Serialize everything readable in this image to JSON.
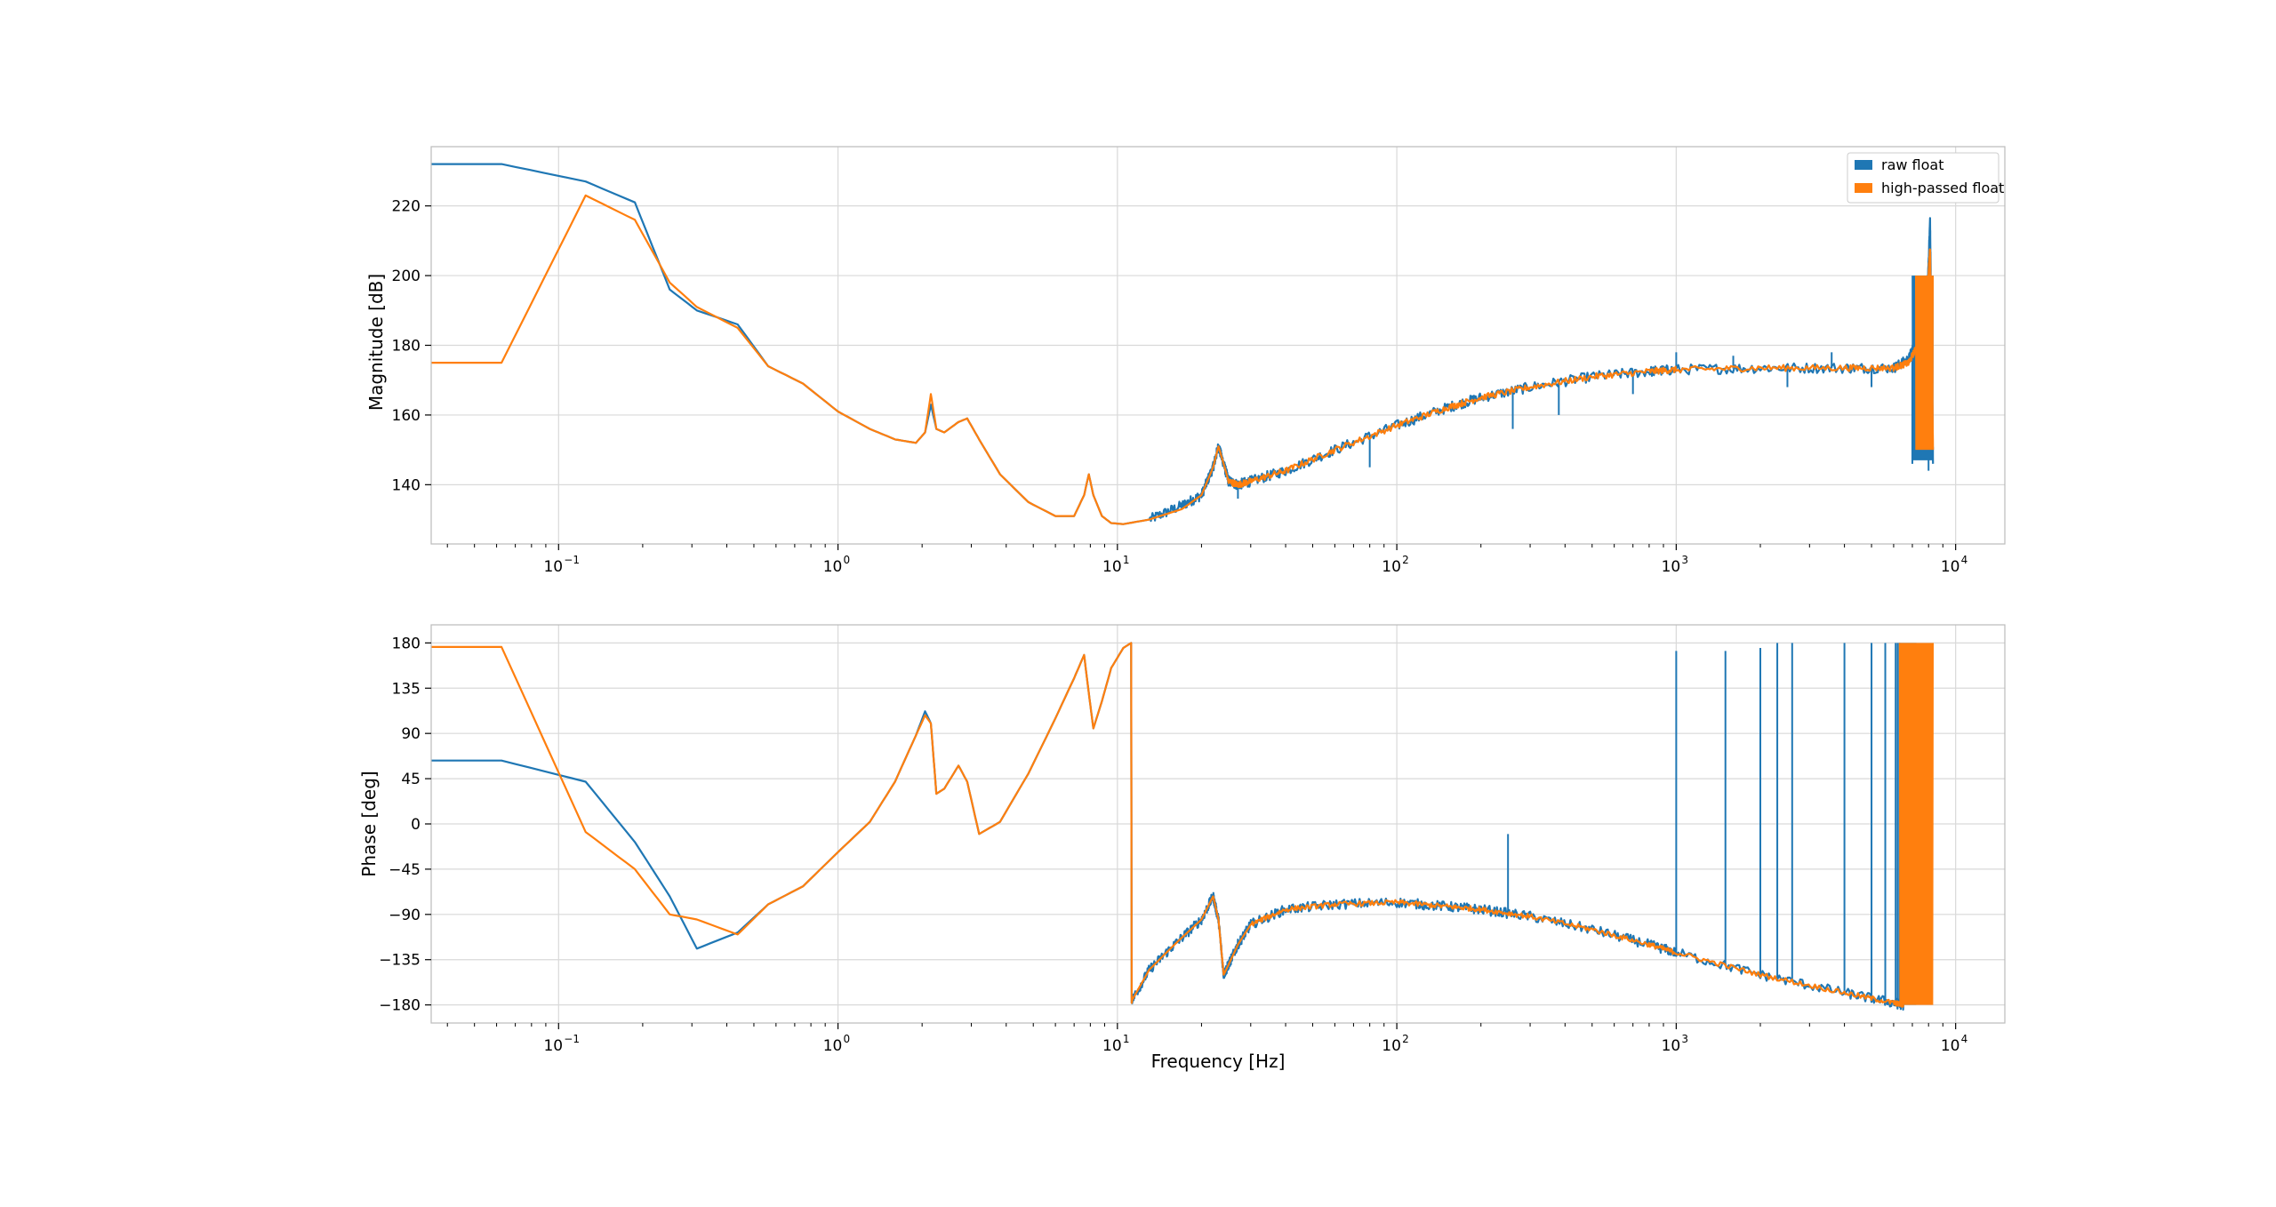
{
  "colors": {
    "raw": "#1f77b4",
    "high_passed": "#ff7f0e",
    "grid": "#d9d9d9",
    "frame": "#bbbbbb"
  },
  "chart_data": [
    {
      "type": "line",
      "title": "",
      "xlabel": "",
      "ylabel": "Magnitude [dB]",
      "xscale": "log",
      "xlim": [
        0.035,
        15000
      ],
      "ylim": [
        123,
        237
      ],
      "grid": true,
      "legend_position": "top-right",
      "x_ticks": [
        {
          "value": 0.1,
          "base": "10",
          "exp": "−1"
        },
        {
          "value": 1,
          "base": "10",
          "exp": "0"
        },
        {
          "value": 10,
          "base": "10",
          "exp": "1"
        },
        {
          "value": 100,
          "base": "10",
          "exp": "2"
        },
        {
          "value": 1000,
          "base": "10",
          "exp": "3"
        },
        {
          "value": 10000,
          "base": "10",
          "exp": "4"
        }
      ],
      "y_ticks": [
        {
          "value": 140,
          "label": "140"
        },
        {
          "value": 160,
          "label": "160"
        },
        {
          "value": 180,
          "label": "180"
        },
        {
          "value": 200,
          "label": "200"
        },
        {
          "value": 220,
          "label": "220"
        }
      ],
      "series": [
        {
          "name": "raw float",
          "color": "#1f77b4",
          "x": [
            0.035,
            0.0625,
            0.125,
            0.1875,
            0.25,
            0.3125,
            0.4375,
            0.5625,
            0.75,
            1.0,
            1.3,
            1.6,
            1.9,
            2.05,
            2.15,
            2.25,
            2.4,
            2.7,
            2.9,
            3.2,
            3.8,
            4.8,
            6.0,
            7.0,
            7.6,
            7.9,
            8.2,
            8.8,
            9.5,
            10.5,
            13,
            17,
            20,
            22,
            23,
            24,
            25,
            27,
            30,
            40,
            60,
            100,
            150,
            200,
            300,
            500,
            800,
            1000,
            2000,
            4000,
            6000,
            6800,
            7300,
            7800,
            8100,
            8300
          ],
          "y": [
            232,
            232,
            227,
            221,
            196,
            190,
            186,
            174,
            169,
            161,
            156,
            153,
            152,
            155,
            163,
            156,
            155,
            158,
            159,
            153,
            143,
            135,
            131,
            131,
            137,
            143,
            137,
            131,
            129,
            128.7,
            130,
            134,
            137,
            145,
            151,
            146,
            141,
            140,
            141,
            144,
            150,
            157,
            162,
            165,
            168,
            171,
            172.5,
            173,
            173.5,
            173.5,
            173.5,
            176,
            183,
            180,
            216,
            146
          ],
          "noise_from": 13,
          "noise_amp": 1.5,
          "spikes": [
            {
              "x": 27,
              "y": 136
            },
            {
              "x": 80,
              "y": 145
            },
            {
              "x": 260,
              "y": 156
            },
            {
              "x": 380,
              "y": 160
            },
            {
              "x": 700,
              "y": 166
            },
            {
              "x": 1000,
              "y": 178
            },
            {
              "x": 1600,
              "y": 177
            },
            {
              "x": 2500,
              "y": 168
            },
            {
              "x": 3600,
              "y": 178
            },
            {
              "x": 5000,
              "y": 168
            },
            {
              "x": 7000,
              "y": 146
            },
            {
              "x": 8000,
              "y": 144
            }
          ],
          "envelope_end": {
            "x_start": 7000,
            "x_end": 8300,
            "hi": 200,
            "lo": 147
          }
        },
        {
          "name": "high-passed float",
          "color": "#ff7f0e",
          "x": [
            0.035,
            0.0625,
            0.125,
            0.1875,
            0.25,
            0.3125,
            0.4375,
            0.5625,
            0.75,
            1.0,
            1.3,
            1.6,
            1.9,
            2.05,
            2.15,
            2.25,
            2.4,
            2.7,
            2.9,
            3.2,
            3.8,
            4.8,
            6.0,
            7.0,
            7.6,
            7.9,
            8.2,
            8.8,
            9.5,
            10.5,
            13,
            17,
            20,
            22,
            23,
            24,
            25,
            27,
            30,
            40,
            60,
            100,
            150,
            200,
            300,
            500,
            800,
            1000,
            2000,
            4000,
            6000,
            6800,
            7300,
            7800,
            8100,
            8300
          ],
          "y": [
            175,
            175,
            223,
            216,
            198,
            191,
            185,
            174,
            169,
            161,
            156,
            153,
            152,
            155,
            166,
            156,
            155,
            158,
            159,
            153,
            143,
            135,
            131,
            131,
            137,
            143,
            137,
            131,
            129,
            128.7,
            130,
            133,
            137,
            145,
            151,
            146,
            141,
            140,
            141,
            144,
            150,
            157,
            162,
            165,
            168,
            171,
            172.5,
            173,
            173.5,
            173.5,
            173.5,
            175,
            180,
            185,
            208,
            150
          ],
          "noise_from": 25,
          "noise_amp": 0.9,
          "spikes": [],
          "envelope_end": {
            "x_start": 7200,
            "x_end": 8300,
            "hi": 200,
            "lo": 150
          }
        }
      ],
      "legend": [
        "raw float",
        "high-passed float"
      ]
    },
    {
      "type": "line",
      "title": "",
      "xlabel": "Frequency [Hz]",
      "ylabel": "Phase [deg]",
      "xscale": "log",
      "xlim": [
        0.035,
        15000
      ],
      "ylim": [
        -198,
        198
      ],
      "grid": true,
      "x_ticks": [
        {
          "value": 0.1,
          "base": "10",
          "exp": "−1"
        },
        {
          "value": 1,
          "base": "10",
          "exp": "0"
        },
        {
          "value": 10,
          "base": "10",
          "exp": "1"
        },
        {
          "value": 100,
          "base": "10",
          "exp": "2"
        },
        {
          "value": 1000,
          "base": "10",
          "exp": "3"
        },
        {
          "value": 10000,
          "base": "10",
          "exp": "4"
        }
      ],
      "y_ticks": [
        {
          "value": 180,
          "label": "180"
        },
        {
          "value": 135,
          "label": "135"
        },
        {
          "value": 90,
          "label": "90"
        },
        {
          "value": 45,
          "label": "45"
        },
        {
          "value": 0,
          "label": "0"
        },
        {
          "value": -45,
          "label": "−45"
        },
        {
          "value": -90,
          "label": "−90"
        },
        {
          "value": -135,
          "label": "−135"
        },
        {
          "value": -180,
          "label": "−180"
        }
      ],
      "series": [
        {
          "name": "raw float",
          "color": "#1f77b4",
          "x": [
            0.035,
            0.0625,
            0.125,
            0.1875,
            0.25,
            0.3125,
            0.4375,
            0.5625,
            0.75,
            1.0,
            1.3,
            1.6,
            1.9,
            2.05,
            2.15,
            2.25,
            2.4,
            2.7,
            2.9,
            3.2,
            3.8,
            4.8,
            6.0,
            7.0,
            7.6,
            7.9,
            8.2,
            8.8,
            9.5,
            10.5,
            11.2,
            11.25,
            11.3,
            13,
            16,
            20,
            22,
            23,
            24,
            25,
            27,
            30,
            40,
            60,
            100,
            150,
            200,
            300,
            500,
            800,
            1000,
            2000,
            4000,
            6000,
            6500
          ],
          "y": [
            63,
            63,
            42,
            -18,
            -72,
            -124,
            -108,
            -80,
            -62,
            -28,
            2,
            42,
            88,
            112,
            100,
            30,
            35,
            58,
            42,
            -10,
            2,
            50,
            105,
            145,
            168,
            130,
            95,
            122,
            155,
            175,
            180,
            -178,
            -175,
            -145,
            -120,
            -95,
            -72,
            -95,
            -150,
            -140,
            -120,
            -100,
            -85,
            -80,
            -78,
            -82,
            -85,
            -92,
            -105,
            -120,
            -128,
            -150,
            -168,
            -178,
            -180
          ],
          "noise_from": 11.3,
          "noise_amp": 5,
          "spikes": [
            {
              "x": 250,
              "y": -10
            },
            {
              "x": 1000,
              "y": 172
            },
            {
              "x": 1500,
              "y": 172
            },
            {
              "x": 2000,
              "y": 175
            },
            {
              "x": 2300,
              "y": 180
            },
            {
              "x": 2600,
              "y": 180
            },
            {
              "x": 4000,
              "y": 180
            },
            {
              "x": 5000,
              "y": 180
            },
            {
              "x": 5600,
              "y": 180
            },
            {
              "x": 6100,
              "y": 180
            },
            {
              "x": 6200,
              "y": 180
            },
            {
              "x": 6300,
              "y": 180
            }
          ],
          "envelope_end": {
            "x_start": 6300,
            "x_end": 7200,
            "hi": 180,
            "lo": -180
          }
        },
        {
          "name": "high-passed float",
          "color": "#ff7f0e",
          "x": [
            0.035,
            0.0625,
            0.125,
            0.1875,
            0.25,
            0.3125,
            0.4375,
            0.5625,
            0.75,
            1.0,
            1.3,
            1.6,
            1.9,
            2.05,
            2.15,
            2.25,
            2.4,
            2.7,
            2.9,
            3.2,
            3.8,
            4.8,
            6.0,
            7.0,
            7.6,
            7.9,
            8.2,
            8.8,
            9.5,
            10.5,
            11.2,
            11.25,
            11.3,
            13,
            16,
            20,
            22,
            23,
            24,
            25,
            27,
            30,
            40,
            60,
            100,
            150,
            200,
            300,
            500,
            800,
            1000,
            2000,
            4000,
            6000,
            6500
          ],
          "y": [
            176,
            176,
            -8,
            -45,
            -90,
            -95,
            -110,
            -80,
            -62,
            -28,
            2,
            42,
            88,
            108,
            100,
            30,
            35,
            58,
            42,
            -10,
            2,
            50,
            105,
            145,
            168,
            130,
            95,
            122,
            155,
            175,
            180,
            -178,
            -175,
            -145,
            -120,
            -95,
            -72,
            -95,
            -150,
            -140,
            -120,
            -100,
            -85,
            -80,
            -78,
            -82,
            -85,
            -92,
            -105,
            -120,
            -128,
            -150,
            -168,
            -178,
            -180
          ],
          "noise_from": 30,
          "noise_amp": 2.5,
          "spikes": [],
          "envelope_end": {
            "x_start": 6300,
            "x_end": 8300,
            "hi": 180,
            "lo": -180
          }
        }
      ]
    }
  ]
}
